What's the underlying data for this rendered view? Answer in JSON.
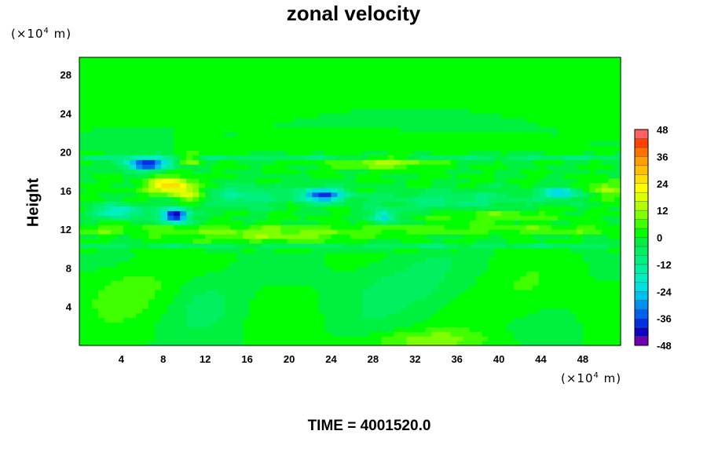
{
  "chart_data": {
    "type": "heatmap",
    "title": "zonal velocity",
    "ylabel": "Height",
    "xlabel": "",
    "y_unit": {
      "prefix": "(×10",
      "exp": "4",
      "suffix": " m)"
    },
    "x_unit": {
      "prefix": "(×10",
      "exp": "4",
      "suffix": " m)"
    },
    "xlim": [
      0,
      51.6
    ],
    "ylim": [
      0,
      29.8
    ],
    "xticks": [
      4,
      8,
      12,
      16,
      20,
      24,
      28,
      32,
      36,
      40,
      44,
      48
    ],
    "yticks": [
      4,
      8,
      12,
      16,
      20,
      24,
      28
    ],
    "colorbar": {
      "min": -48,
      "max": 48,
      "step": 4,
      "ticks": [
        48,
        36,
        24,
        12,
        0,
        -12,
        -24,
        -36,
        -48
      ],
      "colors": [
        "#7000b0",
        "#1000c0",
        "#0030e0",
        "#0060f0",
        "#0090f0",
        "#00c0f0",
        "#00e0e0",
        "#00f0c0",
        "#00f0a0",
        "#00f080",
        "#00f060",
        "#00f040",
        "#00ff00",
        "#40ff00",
        "#80ff00",
        "#b0ff00",
        "#e0ff00",
        "#ffff00",
        "#ffe000",
        "#ffc000",
        "#ffa000",
        "#ff7000",
        "#ff4000",
        "#ff6060"
      ]
    },
    "features": [
      {
        "x": 6.5,
        "y": 18.8,
        "value": -40,
        "sx": 1.6,
        "sy": 0.45
      },
      {
        "x": 9.1,
        "y": 13.5,
        "value": -46,
        "sx": 0.9,
        "sy": 0.55
      },
      {
        "x": 3.8,
        "y": 13.9,
        "value": -22,
        "sx": 1.6,
        "sy": 0.5
      },
      {
        "x": 8.7,
        "y": 16.6,
        "value": 26,
        "sx": 1.6,
        "sy": 0.6
      },
      {
        "x": 10.4,
        "y": 15.6,
        "value": 14,
        "sx": 0.9,
        "sy": 0.5
      },
      {
        "x": 10.6,
        "y": 19.3,
        "value": 14,
        "sx": 0.7,
        "sy": 0.4
      },
      {
        "x": 23.2,
        "y": 15.6,
        "value": -36,
        "sx": 1.6,
        "sy": 0.5
      },
      {
        "x": 29.2,
        "y": 19.0,
        "value": 14,
        "sx": 3.0,
        "sy": 0.45
      },
      {
        "x": 29.0,
        "y": 13.4,
        "value": -24,
        "sx": 0.8,
        "sy": 0.5
      },
      {
        "x": 45.9,
        "y": 15.8,
        "value": -26,
        "sx": 1.2,
        "sy": 0.4
      },
      {
        "x": 50.2,
        "y": 16.2,
        "value": 14,
        "sx": 1.2,
        "sy": 0.6
      },
      {
        "x": 15.5,
        "y": 15.5,
        "value": -12,
        "sx": 2.5,
        "sy": 0.8
      },
      {
        "x": 36.0,
        "y": 15.0,
        "value": -9,
        "sx": 6.0,
        "sy": 0.8
      },
      {
        "x": 19.0,
        "y": 11.3,
        "value": 10,
        "sx": 5.5,
        "sy": 0.4
      },
      {
        "x": 40.0,
        "y": 13.5,
        "value": 8,
        "sx": 4.5,
        "sy": 0.5
      },
      {
        "x": 5.5,
        "y": 5.8,
        "value": 6,
        "sx": 3.0,
        "sy": 2.0
      },
      {
        "x": 31.5,
        "y": 6.2,
        "value": -6,
        "sx": 3.5,
        "sy": 2.2
      },
      {
        "x": 42.5,
        "y": 5.5,
        "value": 5,
        "sx": 3.0,
        "sy": 2.0
      },
      {
        "x": 33.0,
        "y": 0.6,
        "value": 10,
        "sx": 4.0,
        "sy": 0.7
      },
      {
        "x": 12.5,
        "y": 4.5,
        "value": -4,
        "sx": 2.5,
        "sy": 2.0
      }
    ]
  },
  "footer": {
    "time_label": "TIME = 4001520.0"
  }
}
